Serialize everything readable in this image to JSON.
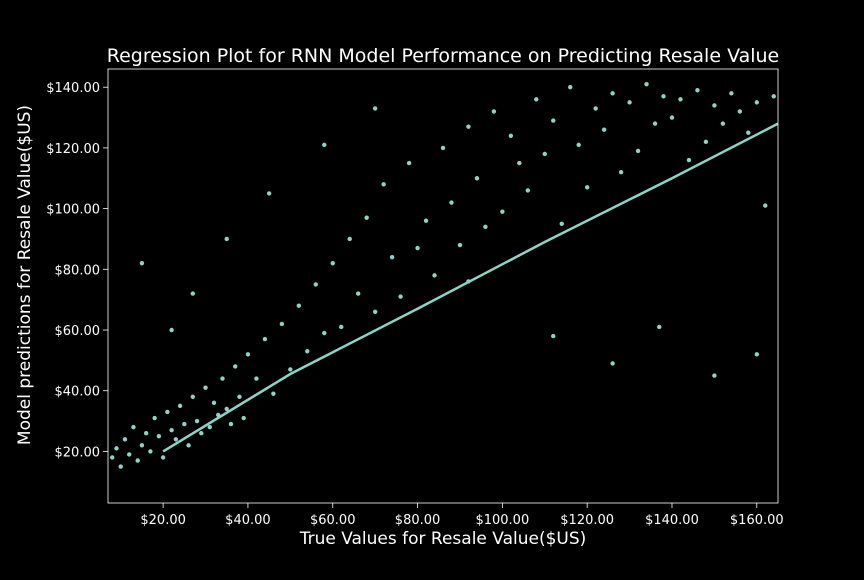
{
  "chart_data": {
    "type": "scatter",
    "title": "Regression Plot for RNN Model Performance on Predicting Resale Value",
    "xlabel": "True Values for Resale Value($US)",
    "ylabel": "Model predictions for Resale Value($US)",
    "xlim": [
      7,
      165
    ],
    "ylim": [
      3,
      146
    ],
    "x_ticks": [
      20,
      40,
      60,
      80,
      100,
      120,
      140,
      160
    ],
    "x_tick_labels": [
      "$20.00",
      "$40.00",
      "$60.00",
      "$80.00",
      "$100.00",
      "$120.00",
      "$140.00",
      "$160.00"
    ],
    "y_ticks": [
      20,
      40,
      60,
      80,
      100,
      120,
      140
    ],
    "y_tick_labels": [
      "$20.00",
      "$40.00",
      "$60.00",
      "$80.00",
      "$100.00",
      "$120.00",
      "$140.00"
    ],
    "grid": false,
    "legend": "none",
    "colors": {
      "background": "#000000",
      "points": "#8dd3c7",
      "regression_line": "#8dd3c7",
      "axes": "#ffffff",
      "text": "#ffffff"
    },
    "regression_line": {
      "x": [
        20,
        50,
        80,
        110,
        140,
        165
      ],
      "y": [
        20,
        45.5,
        67,
        89,
        110,
        128
      ]
    },
    "series": [
      {
        "type": "scatter",
        "x": [
          8,
          9,
          10,
          11,
          12,
          13,
          14,
          15,
          16,
          17,
          18,
          19,
          20,
          21,
          22,
          23,
          24,
          25,
          26,
          27,
          28,
          29,
          30,
          31,
          32,
          33,
          34,
          35,
          36,
          37,
          38,
          39,
          40,
          42,
          44,
          46,
          48,
          50,
          52,
          54,
          56,
          58,
          60,
          62,
          64,
          66,
          68,
          70,
          72,
          74,
          76,
          78,
          80,
          82,
          84,
          86,
          88,
          90,
          92,
          94,
          96,
          98,
          100,
          102,
          104,
          106,
          108,
          110,
          112,
          114,
          116,
          118,
          120,
          122,
          124,
          126,
          128,
          130,
          132,
          134,
          136,
          138,
          140,
          142,
          144,
          146,
          148,
          150,
          152,
          154,
          156,
          158,
          160,
          162,
          164,
          15,
          22,
          27,
          35,
          45,
          58,
          70,
          92,
          112,
          126,
          137,
          150,
          160
        ],
        "y": [
          18,
          21,
          15,
          24,
          19,
          28,
          17,
          22,
          26,
          20,
          31,
          25,
          18,
          33,
          27,
          24,
          35,
          29,
          22,
          38,
          30,
          26,
          41,
          28,
          36,
          32,
          44,
          34,
          29,
          48,
          38,
          31,
          52,
          44,
          57,
          39,
          62,
          47,
          68,
          53,
          75,
          59,
          82,
          61,
          90,
          72,
          97,
          66,
          108,
          84,
          71,
          115,
          87,
          96,
          78,
          120,
          102,
          88,
          127,
          110,
          94,
          132,
          99,
          124,
          115,
          106,
          136,
          118,
          129,
          95,
          140,
          121,
          107,
          133,
          126,
          138,
          112,
          135,
          119,
          141,
          128,
          137,
          130,
          136,
          116,
          139,
          122,
          134,
          128,
          138,
          132,
          125,
          135,
          101,
          137,
          82,
          60,
          72,
          90,
          105,
          121,
          133,
          76,
          58,
          49,
          61,
          45,
          52
        ]
      }
    ]
  }
}
